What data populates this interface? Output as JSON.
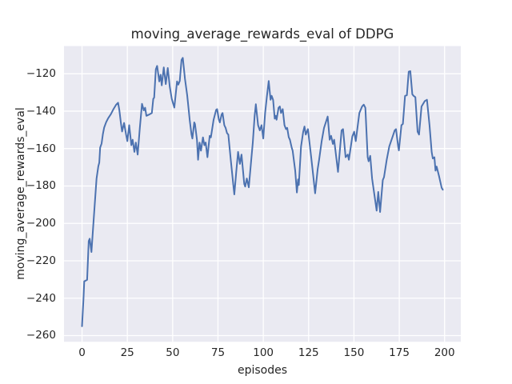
{
  "chart_data": {
    "type": "line",
    "title": "moving_average_rewards_eval of DDPG",
    "xlabel": "episodes",
    "ylabel": "moving_average_rewards_eval",
    "grid": true,
    "legend": "none",
    "xlim": [
      -9.95,
      208.95
    ],
    "ylim": [
      -263.3,
      -105.2
    ],
    "xticks": [
      0,
      25,
      50,
      75,
      100,
      125,
      150,
      175,
      200
    ],
    "yticks": [
      -260,
      -240,
      -220,
      -200,
      -180,
      -160,
      -140,
      -120
    ],
    "xtick_labels": [
      "0",
      "25",
      "50",
      "75",
      "100",
      "125",
      "150",
      "175",
      "200"
    ],
    "ytick_labels": [
      "−260",
      "−240",
      "−220",
      "−200",
      "−180",
      "−160",
      "−140",
      "−120"
    ],
    "colors": {
      "line": "#4c72b0",
      "plot_bg": "#eaeaf2",
      "grid": "#ffffff",
      "figure_bg": "#ffffff",
      "text": "#262626"
    },
    "series": [
      {
        "name": "moving_average_rewards_eval",
        "points": [
          [
            0,
            -255
          ],
          [
            0.8,
            -240
          ],
          [
            1.2,
            -231
          ],
          [
            2,
            -230.6
          ],
          [
            2.8,
            -230.2
          ],
          [
            3.7,
            -209.5
          ],
          [
            4.2,
            -208.2
          ],
          [
            5.2,
            -215.3
          ],
          [
            6.2,
            -201
          ],
          [
            7,
            -190
          ],
          [
            8,
            -176
          ],
          [
            9,
            -169.5
          ],
          [
            9.5,
            -167.5
          ],
          [
            10,
            -159.5
          ],
          [
            10.8,
            -157.3
          ],
          [
            11.5,
            -152.3
          ],
          [
            12.2,
            -148.8
          ],
          [
            13.3,
            -145.9
          ],
          [
            14.4,
            -143.8
          ],
          [
            15.9,
            -141.6
          ],
          [
            17.4,
            -138.8
          ],
          [
            18.8,
            -136.6
          ],
          [
            19.9,
            -135.5
          ],
          [
            20.6,
            -139.5
          ],
          [
            21.4,
            -145.9
          ],
          [
            22.1,
            -150.9
          ],
          [
            23.2,
            -146.3
          ],
          [
            24.3,
            -152.5
          ],
          [
            25,
            -156
          ],
          [
            26,
            -147.5
          ],
          [
            27.2,
            -158.2
          ],
          [
            27.9,
            -155.3
          ],
          [
            28.9,
            -161.8
          ],
          [
            29.7,
            -156.8
          ],
          [
            30.7,
            -163.2
          ],
          [
            31.9,
            -148.9
          ],
          [
            33.1,
            -136.1
          ],
          [
            34.1,
            -139.6
          ],
          [
            34.8,
            -138.2
          ],
          [
            35.5,
            -142.5
          ],
          [
            37,
            -141.8
          ],
          [
            38.5,
            -141
          ],
          [
            39.3,
            -133.4
          ],
          [
            39.8,
            -132.8
          ],
          [
            40.7,
            -117.6
          ],
          [
            41.4,
            -115.8
          ],
          [
            42.6,
            -124.1
          ],
          [
            43.3,
            -120.5
          ],
          [
            44,
            -126.2
          ],
          [
            45.1,
            -116.6
          ],
          [
            46.2,
            -125.5
          ],
          [
            47.3,
            -116.9
          ],
          [
            48.4,
            -126.9
          ],
          [
            49.5,
            -133.4
          ],
          [
            50.9,
            -138.1
          ],
          [
            52.4,
            -124.1
          ],
          [
            53.1,
            -125.8
          ],
          [
            53.9,
            -123.8
          ],
          [
            54.9,
            -112.6
          ],
          [
            55.6,
            -111.5
          ],
          [
            56.8,
            -122.7
          ],
          [
            58,
            -131.5
          ],
          [
            58.7,
            -138.2
          ],
          [
            59.4,
            -144.6
          ],
          [
            60.4,
            -152.5
          ],
          [
            60.9,
            -154.6
          ],
          [
            61.9,
            -146
          ],
          [
            62.3,
            -146.8
          ],
          [
            63.4,
            -155.3
          ],
          [
            64,
            -166
          ],
          [
            64.8,
            -156.8
          ],
          [
            65.6,
            -161.1
          ],
          [
            66.7,
            -154
          ],
          [
            67.5,
            -158.2
          ],
          [
            68.2,
            -156.8
          ],
          [
            69.2,
            -164.6
          ],
          [
            70.4,
            -153.2
          ],
          [
            71.1,
            -154
          ],
          [
            72.6,
            -144.6
          ],
          [
            74,
            -139.3
          ],
          [
            74.5,
            -138.9
          ],
          [
            75.5,
            -144.6
          ],
          [
            76,
            -146
          ],
          [
            77,
            -141.8
          ],
          [
            77.5,
            -141
          ],
          [
            78.5,
            -147.5
          ],
          [
            79.2,
            -148.9
          ],
          [
            80,
            -151.8
          ],
          [
            80.7,
            -152.5
          ],
          [
            82,
            -165.3
          ],
          [
            83.6,
            -181
          ],
          [
            84,
            -184.5
          ],
          [
            85.1,
            -172
          ],
          [
            86.1,
            -161.8
          ],
          [
            87.1,
            -168.2
          ],
          [
            88,
            -163.2
          ],
          [
            89.5,
            -178.9
          ],
          [
            90,
            -180.3
          ],
          [
            90.9,
            -176
          ],
          [
            92,
            -180.7
          ],
          [
            93.4,
            -165.3
          ],
          [
            94.2,
            -156.8
          ],
          [
            95.2,
            -142.5
          ],
          [
            95.9,
            -136.3
          ],
          [
            97.1,
            -147.5
          ],
          [
            98.1,
            -150.3
          ],
          [
            99,
            -147.5
          ],
          [
            100,
            -154.6
          ],
          [
            101,
            -141
          ],
          [
            102,
            -131.8
          ],
          [
            103,
            -123.9
          ],
          [
            104,
            -133.9
          ],
          [
            104.6,
            -131.8
          ],
          [
            105.4,
            -134
          ],
          [
            106.3,
            -144
          ],
          [
            106.9,
            -142.5
          ],
          [
            107.3,
            -144.6
          ],
          [
            108.4,
            -138.2
          ],
          [
            109.1,
            -137.5
          ],
          [
            109.8,
            -141
          ],
          [
            110.7,
            -138.9
          ],
          [
            111.7,
            -147.5
          ],
          [
            112.5,
            -149.6
          ],
          [
            113.2,
            -148.9
          ],
          [
            114,
            -153.9
          ],
          [
            114.7,
            -155.3
          ],
          [
            115.7,
            -159.6
          ],
          [
            116.2,
            -161.1
          ],
          [
            117.6,
            -171.8
          ],
          [
            118.5,
            -183.5
          ],
          [
            119.2,
            -176.5
          ],
          [
            119.6,
            -179.5
          ],
          [
            120.8,
            -158.9
          ],
          [
            122,
            -151
          ],
          [
            122.7,
            -148.2
          ],
          [
            123.4,
            -152.5
          ],
          [
            124.6,
            -149.6
          ],
          [
            126.4,
            -164.6
          ],
          [
            127.5,
            -174
          ],
          [
            128.6,
            -183.9
          ],
          [
            130,
            -171
          ],
          [
            130.8,
            -166
          ],
          [
            132.2,
            -156
          ],
          [
            133.5,
            -149
          ],
          [
            135.5,
            -142.9
          ],
          [
            136.6,
            -155.3
          ],
          [
            137.4,
            -153.2
          ],
          [
            138.4,
            -157.5
          ],
          [
            139.1,
            -155.3
          ],
          [
            141.2,
            -172.5
          ],
          [
            143.2,
            -150.3
          ],
          [
            144,
            -149.6
          ],
          [
            145.4,
            -164.6
          ],
          [
            146.6,
            -163.2
          ],
          [
            147.2,
            -166
          ],
          [
            149.1,
            -153.5
          ],
          [
            150.1,
            -151
          ],
          [
            151,
            -156
          ],
          [
            153,
            -141
          ],
          [
            154.5,
            -137.5
          ],
          [
            155.4,
            -136.5
          ],
          [
            156.3,
            -138.2
          ],
          [
            157.6,
            -164.6
          ],
          [
            158.1,
            -166.8
          ],
          [
            159,
            -163.9
          ],
          [
            160,
            -176
          ],
          [
            161.9,
            -188.9
          ],
          [
            162.5,
            -193.2
          ],
          [
            163.4,
            -183.2
          ],
          [
            164.4,
            -193.9
          ],
          [
            165.9,
            -176.8
          ],
          [
            166.6,
            -175.3
          ],
          [
            168.1,
            -166
          ],
          [
            169.5,
            -158.9
          ],
          [
            171,
            -154.6
          ],
          [
            172.5,
            -150.3
          ],
          [
            173.2,
            -149.6
          ],
          [
            174.4,
            -158.9
          ],
          [
            174.8,
            -161
          ],
          [
            176.2,
            -147.5
          ],
          [
            177,
            -146.8
          ],
          [
            178.2,
            -131.8
          ],
          [
            179.2,
            -131.5
          ],
          [
            180.2,
            -118.9
          ],
          [
            181.1,
            -118.6
          ],
          [
            182.2,
            -131
          ],
          [
            182.9,
            -131.8
          ],
          [
            183.9,
            -132.5
          ],
          [
            185.1,
            -151
          ],
          [
            185.9,
            -152.5
          ],
          [
            187.3,
            -137.5
          ],
          [
            189.1,
            -134.6
          ],
          [
            190.3,
            -133.9
          ],
          [
            191.7,
            -147.5
          ],
          [
            192.9,
            -161.8
          ],
          [
            193.5,
            -165.3
          ],
          [
            194.4,
            -164.6
          ],
          [
            195,
            -171.8
          ],
          [
            195.6,
            -169.6
          ],
          [
            196.9,
            -174.6
          ],
          [
            198.4,
            -181
          ],
          [
            199,
            -182
          ]
        ]
      }
    ]
  }
}
